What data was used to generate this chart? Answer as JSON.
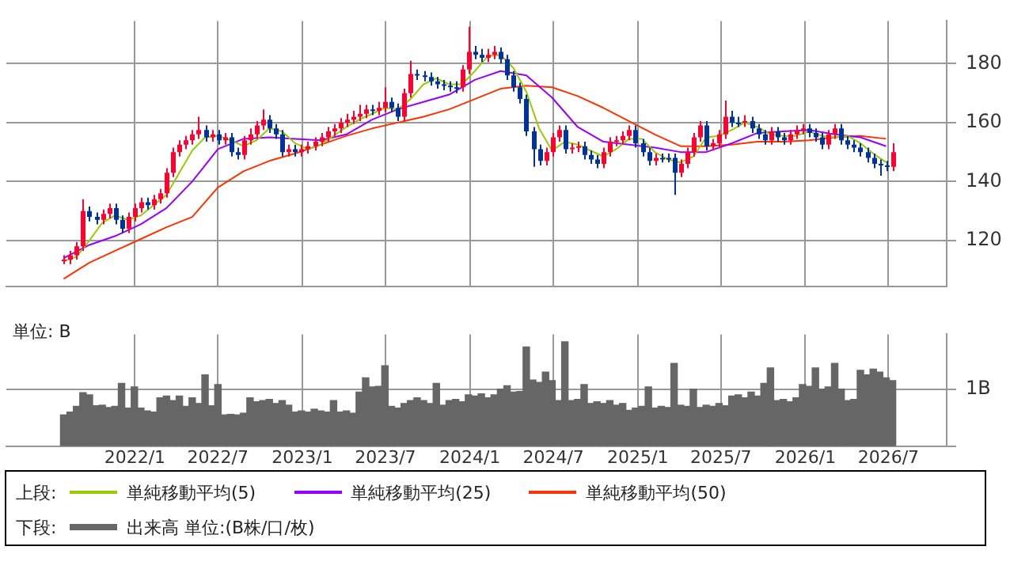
{
  "chart_data": [
    {
      "type": "candlestick",
      "legend": "bottom",
      "legend_title": "上段:",
      "grid": true,
      "tick_labels": "y",
      "xlim": [
        "2021-03-27",
        "2026-11-05"
      ],
      "xticks": [
        {
          "value": "2022-01",
          "label": null
        },
        {
          "value": "2022-07",
          "label": null
        },
        {
          "value": "2023-01",
          "label": null
        },
        {
          "value": "2023-07",
          "label": null
        },
        {
          "value": "2024-01",
          "label": null
        },
        {
          "value": "2024-07",
          "label": null
        },
        {
          "value": "2025-01",
          "label": null
        },
        {
          "value": "2025-07",
          "label": null
        },
        {
          "value": "2026-01",
          "label": null
        },
        {
          "value": "2026-07",
          "label": null
        }
      ],
      "ylim": [
        104.5,
        194.5
      ],
      "yticks": [
        120,
        140,
        160,
        180
      ],
      "x": [
        "2021-07-30",
        "2021-08-13",
        "2021-08-27",
        "2021-09-10",
        "2021-09-24",
        "2021-10-08",
        "2021-10-22",
        "2021-11-05",
        "2021-11-19",
        "2021-12-03",
        "2021-12-17",
        "2021-12-31",
        "2022-01-14",
        "2022-01-28",
        "2022-02-11",
        "2022-02-25",
        "2022-03-11",
        "2022-03-25",
        "2022-04-08",
        "2022-04-22",
        "2022-05-06",
        "2022-05-20",
        "2022-06-03",
        "2022-06-17",
        "2022-07-01",
        "2022-07-15",
        "2022-07-29",
        "2022-08-12",
        "2022-08-26",
        "2022-09-09",
        "2022-09-23",
        "2022-10-07",
        "2022-10-21",
        "2022-11-04",
        "2022-11-18",
        "2022-12-02",
        "2022-12-16",
        "2022-12-30",
        "2023-01-13",
        "2023-01-27",
        "2023-02-10",
        "2023-02-24",
        "2023-03-10",
        "2023-03-24",
        "2023-04-07",
        "2023-04-21",
        "2023-05-05",
        "2023-05-19",
        "2023-06-02",
        "2023-06-16",
        "2023-06-30",
        "2023-07-14",
        "2023-07-28",
        "2023-08-11",
        "2023-08-25",
        "2023-09-08",
        "2023-09-22",
        "2023-10-06",
        "2023-10-20",
        "2023-11-03",
        "2023-11-17",
        "2023-12-01",
        "2023-12-15",
        "2023-12-29",
        "2024-01-12",
        "2024-01-26",
        "2024-02-09",
        "2024-02-23",
        "2024-03-08",
        "2024-03-22",
        "2024-04-05",
        "2024-04-19",
        "2024-05-03",
        "2024-05-17",
        "2024-05-31",
        "2024-06-14",
        "2024-06-28",
        "2024-07-12",
        "2024-07-26",
        "2024-08-09",
        "2024-08-23",
        "2024-09-06",
        "2024-09-20",
        "2024-10-04",
        "2024-10-18",
        "2024-11-01",
        "2024-11-15",
        "2024-11-29",
        "2024-12-13",
        "2024-12-27",
        "2025-01-10",
        "2025-01-24",
        "2025-02-07",
        "2025-02-21",
        "2025-03-07",
        "2025-03-21",
        "2025-04-04",
        "2025-04-18",
        "2025-05-02",
        "2025-05-16",
        "2025-05-30",
        "2025-06-13",
        "2025-06-27",
        "2025-07-11",
        "2025-07-25",
        "2025-08-08",
        "2025-08-22",
        "2025-09-05",
        "2025-09-19",
        "2025-10-03",
        "2025-10-17",
        "2025-10-31",
        "2025-11-14",
        "2025-11-28",
        "2025-12-12",
        "2025-12-26",
        "2026-01-09",
        "2026-01-23",
        "2026-02-06",
        "2026-02-20",
        "2026-03-06",
        "2026-03-20",
        "2026-04-03",
        "2026-04-17",
        "2026-05-01",
        "2026-05-15",
        "2026-05-29",
        "2026-06-12",
        "2026-06-26",
        "2026-07-10"
      ],
      "ohlc": [
        [
          113,
          115,
          112,
          113.5
        ],
        [
          113.5,
          116.5,
          112,
          115
        ],
        [
          115,
          119.5,
          113.5,
          118
        ],
        [
          118,
          134,
          116.5,
          130
        ],
        [
          130,
          131.5,
          126.5,
          128
        ],
        [
          128,
          129.5,
          125.5,
          127
        ],
        [
          127,
          130.5,
          125.5,
          129
        ],
        [
          129,
          132.5,
          127.5,
          131
        ],
        [
          131,
          132.5,
          125.5,
          127
        ],
        [
          127,
          128.5,
          122.5,
          124
        ],
        [
          124,
          129.5,
          122.5,
          128
        ],
        [
          128,
          132.5,
          126.5,
          131
        ],
        [
          131,
          134.5,
          129.5,
          133
        ],
        [
          133,
          134.5,
          130.5,
          132
        ],
        [
          132,
          135.5,
          130.5,
          134
        ],
        [
          134,
          137.5,
          132.5,
          136
        ],
        [
          136,
          144.5,
          134.5,
          143
        ],
        [
          143,
          151.5,
          141.5,
          150
        ],
        [
          150,
          154,
          148.5,
          152.5
        ],
        [
          152.5,
          155.5,
          151,
          154
        ],
        [
          154,
          157.5,
          152.5,
          156
        ],
        [
          156,
          162,
          154.5,
          157.5
        ],
        [
          157.5,
          159,
          153.5,
          155
        ],
        [
          155,
          157.5,
          153.5,
          156
        ],
        [
          156,
          157.5,
          152.5,
          154
        ],
        [
          154,
          156.5,
          152.5,
          155
        ],
        [
          155,
          156.5,
          148.5,
          150
        ],
        [
          150,
          151.5,
          147.5,
          149
        ],
        [
          149,
          155.5,
          147.5,
          154
        ],
        [
          154,
          158,
          152.5,
          156
        ],
        [
          156,
          160.5,
          154.5,
          159
        ],
        [
          159,
          164.5,
          157.5,
          161
        ],
        [
          161,
          162.5,
          156.5,
          158
        ],
        [
          158,
          159.5,
          154.5,
          156
        ],
        [
          156,
          157.5,
          148.5,
          150
        ],
        [
          150,
          152.5,
          148.5,
          151
        ],
        [
          151,
          152.5,
          148.5,
          150
        ],
        [
          150,
          152.5,
          148.5,
          151
        ],
        [
          151,
          153.5,
          149.5,
          152
        ],
        [
          152,
          155,
          150.5,
          153.5
        ],
        [
          153.5,
          156.5,
          152,
          155
        ],
        [
          155,
          158.5,
          153.5,
          157
        ],
        [
          157,
          159.5,
          155.5,
          158
        ],
        [
          158,
          161.5,
          156.5,
          160
        ],
        [
          160,
          163,
          158.5,
          161
        ],
        [
          161,
          164,
          159.5,
          162
        ],
        [
          162,
          166,
          160.5,
          163
        ],
        [
          163,
          166,
          161.5,
          164.5
        ],
        [
          164.5,
          166,
          162.5,
          164
        ],
        [
          164,
          167,
          162.5,
          165
        ],
        [
          165,
          172,
          163.5,
          167
        ],
        [
          167,
          168.5,
          163.5,
          165
        ],
        [
          165,
          166.5,
          160.5,
          162
        ],
        [
          162,
          171.5,
          160.5,
          170
        ],
        [
          170,
          181,
          168.5,
          176.5
        ],
        [
          176.5,
          178,
          174.5,
          176
        ],
        [
          176,
          177.5,
          174,
          175.5
        ],
        [
          175.5,
          177,
          172.5,
          174
        ],
        [
          174,
          175.5,
          171.5,
          173
        ],
        [
          173,
          174.5,
          171,
          172.5
        ],
        [
          172.5,
          174,
          170.5,
          172
        ],
        [
          172,
          174,
          170,
          172
        ],
        [
          172,
          179.5,
          170.5,
          178
        ],
        [
          178,
          192.5,
          176.5,
          184
        ],
        [
          184,
          186,
          181.5,
          183
        ],
        [
          183,
          185,
          180.5,
          182
        ],
        [
          182,
          185,
          180.5,
          183
        ],
        [
          183,
          186,
          181.5,
          184
        ],
        [
          184,
          185.5,
          180,
          181.5
        ],
        [
          181.5,
          183,
          174.5,
          176
        ],
        [
          176,
          177.5,
          170.5,
          172
        ],
        [
          172,
          173.5,
          166.5,
          168
        ],
        [
          168,
          169.5,
          155.5,
          157
        ],
        [
          157,
          158.5,
          145,
          151
        ],
        [
          151,
          152.5,
          145.5,
          147
        ],
        [
          147,
          151.5,
          145.5,
          150
        ],
        [
          150,
          156.5,
          148.5,
          155
        ],
        [
          155,
          159,
          153.5,
          157.5
        ],
        [
          157.5,
          159,
          149.5,
          151
        ],
        [
          151,
          153,
          149.5,
          151.5
        ],
        [
          151.5,
          153.5,
          150,
          152
        ],
        [
          152,
          153.5,
          147.5,
          149
        ],
        [
          149,
          150.5,
          146,
          147.5
        ],
        [
          147.5,
          149,
          144.5,
          146
        ],
        [
          146,
          151.5,
          144.5,
          150
        ],
        [
          150,
          155,
          148.5,
          153.5
        ],
        [
          153.5,
          155.5,
          152,
          154
        ],
        [
          154,
          157,
          152.5,
          155.5
        ],
        [
          155.5,
          159,
          154,
          157.5
        ],
        [
          157.5,
          159,
          151.5,
          153
        ],
        [
          153,
          154.5,
          148.5,
          150
        ],
        [
          150,
          151.5,
          145.5,
          147
        ],
        [
          147,
          149.5,
          145.5,
          148
        ],
        [
          148,
          149.5,
          146.5,
          148
        ],
        [
          148,
          149.5,
          146.5,
          148
        ],
        [
          148,
          149.5,
          135.5,
          143
        ],
        [
          143,
          147.5,
          141.5,
          146
        ],
        [
          146,
          151.5,
          144.5,
          150
        ],
        [
          150,
          156.5,
          148.5,
          155
        ],
        [
          155,
          160.5,
          153.5,
          159
        ],
        [
          159,
          160.5,
          150.5,
          152
        ],
        [
          152,
          154.5,
          150.5,
          153
        ],
        [
          153,
          157.5,
          151.5,
          156
        ],
        [
          156,
          167.5,
          154.5,
          162
        ],
        [
          162,
          164,
          158.5,
          160
        ],
        [
          160,
          162,
          158.5,
          160
        ],
        [
          160,
          162.5,
          158.5,
          160.5
        ],
        [
          160.5,
          162,
          156.5,
          158
        ],
        [
          158,
          159.5,
          154.5,
          156
        ],
        [
          156,
          157.5,
          152.5,
          154
        ],
        [
          154,
          158.5,
          152.5,
          157
        ],
        [
          157,
          158.5,
          153.5,
          155
        ],
        [
          155,
          156.5,
          152.5,
          154
        ],
        [
          154,
          157.5,
          152.5,
          156
        ],
        [
          156,
          159,
          154.5,
          157.5
        ],
        [
          157.5,
          159.5,
          156,
          158
        ],
        [
          158,
          159.5,
          155,
          156.5
        ],
        [
          156.5,
          158,
          153.5,
          155
        ],
        [
          155,
          156.5,
          151,
          152.5
        ],
        [
          152.5,
          157.5,
          151,
          156
        ],
        [
          156,
          159.5,
          154.5,
          158
        ],
        [
          158,
          159.5,
          152.5,
          154
        ],
        [
          154,
          155.5,
          151,
          152.5
        ],
        [
          152.5,
          154,
          150,
          151.5
        ],
        [
          151.5,
          153,
          148.5,
          150
        ],
        [
          150,
          151.5,
          146.5,
          148
        ],
        [
          148,
          149.5,
          144.5,
          146
        ],
        [
          146,
          147.5,
          142,
          145.5
        ],
        [
          145.5,
          147,
          143.5,
          145
        ],
        [
          145,
          153,
          143.5,
          150
        ]
      ],
      "colors": [
        "#ff0033",
        "#ff0033",
        "#ff0033",
        "#ff0033",
        "#003399",
        "#003399",
        "#ff0033",
        "#ff0033",
        "#003399",
        "#003399",
        "#ff0033",
        "#ff0033",
        "#ff0033",
        "#003399",
        "#ff0033",
        "#ff0033",
        "#ff0033",
        "#ff0033",
        "#ff0033",
        "#ff0033",
        "#ff0033",
        "#ff0033",
        "#003399",
        "#ff0033",
        "#003399",
        "#ff0033",
        "#003399",
        "#003399",
        "#ff0033",
        "#ff0033",
        "#ff0033",
        "#ff0033",
        "#003399",
        "#003399",
        "#003399",
        "#ff0033",
        "#003399",
        "#ff0033",
        "#ff0033",
        "#ff0033",
        "#ff0033",
        "#ff0033",
        "#ff0033",
        "#ff0033",
        "#ff0033",
        "#ff0033",
        "#ff0033",
        "#ff0033",
        "#003399",
        "#ff0033",
        "#ff0033",
        "#003399",
        "#003399",
        "#ff0033",
        "#ff0033",
        "#003399",
        "#003399",
        "#003399",
        "#003399",
        "#003399",
        "#003399",
        "#003399",
        "#ff0033",
        "#ff0033",
        "#003399",
        "#003399",
        "#ff0033",
        "#ff0033",
        "#003399",
        "#003399",
        "#003399",
        "#003399",
        "#003399",
        "#003399",
        "#003399",
        "#ff0033",
        "#ff0033",
        "#ff0033",
        "#003399",
        "#ff0033",
        "#ff0033",
        "#003399",
        "#003399",
        "#003399",
        "#ff0033",
        "#ff0033",
        "#ff0033",
        "#ff0033",
        "#ff0033",
        "#003399",
        "#003399",
        "#003399",
        "#ff0033",
        "#003399",
        "#003399",
        "#003399",
        "#ff0033",
        "#ff0033",
        "#ff0033",
        "#ff0033",
        "#003399",
        "#ff0033",
        "#ff0033",
        "#ff0033",
        "#003399",
        "#003399",
        "#ff0033",
        "#003399",
        "#003399",
        "#003399",
        "#ff0033",
        "#003399",
        "#003399",
        "#ff0033",
        "#ff0033",
        "#ff0033",
        "#003399",
        "#003399",
        "#003399",
        "#ff0033",
        "#ff0033",
        "#003399",
        "#003399",
        "#003399",
        "#003399",
        "#003399",
        "#003399",
        "#003399",
        "#003399",
        "#ff0033"
      ],
      "series": [
        {
          "type": "line",
          "name": "単純移動平均(5)",
          "color": "#99cc00",
          "x": [
            "2021-07-30",
            "2021-08-27",
            "2021-09-24",
            "2021-10-22",
            "2021-11-19",
            "2021-12-17",
            "2022-01-14",
            "2022-02-11",
            "2022-03-11",
            "2022-04-08",
            "2022-05-06",
            "2022-06-03",
            "2022-07-01",
            "2022-07-29",
            "2022-08-26",
            "2022-09-23",
            "2022-10-21",
            "2022-11-18",
            "2022-12-16",
            "2023-01-13",
            "2023-02-10",
            "2023-03-10",
            "2023-04-07",
            "2023-05-05",
            "2023-06-02",
            "2023-06-30",
            "2023-07-28",
            "2023-08-25",
            "2023-09-22",
            "2023-10-20",
            "2023-11-17",
            "2023-12-15",
            "2024-01-12",
            "2024-02-09",
            "2024-03-08",
            "2024-04-05",
            "2024-05-03",
            "2024-05-31",
            "2024-06-28",
            "2024-07-26",
            "2024-08-23",
            "2024-09-20",
            "2024-10-18",
            "2024-11-15",
            "2024-12-13",
            "2025-01-10",
            "2025-02-07",
            "2025-03-07",
            "2025-04-04",
            "2025-05-02",
            "2025-05-30",
            "2025-06-27",
            "2025-07-25",
            "2025-08-22",
            "2025-09-19",
            "2025-10-17",
            "2025-11-14",
            "2025-12-12",
            "2026-01-09",
            "2026-02-06",
            "2026-03-06",
            "2026-04-03",
            "2026-05-01",
            "2026-05-29",
            "2026-06-26"
          ],
          "values": [
            113,
            114.5,
            120,
            126,
            128.5,
            127,
            128.5,
            132,
            135.5,
            143,
            150.5,
            155,
            155.5,
            154,
            152,
            154,
            158,
            157,
            153,
            151,
            152.5,
            155.5,
            158.5,
            161,
            163,
            165,
            164.5,
            168,
            173,
            175,
            173,
            173,
            177.5,
            182.5,
            183,
            178.5,
            170.5,
            158,
            150.5,
            153.5,
            152.5,
            150.5,
            148.5,
            151,
            154.5,
            154.5,
            150,
            147.5,
            146.5,
            148.5,
            155,
            155.5,
            157.5,
            160,
            158.5,
            156,
            155.5,
            155.5,
            157,
            155.5,
            155,
            155.5,
            153,
            149.5,
            146.5
          ]
        },
        {
          "type": "line",
          "name": "単純移動平均(25)",
          "color": "#9900ff",
          "x": [
            "2021-07-30",
            "2021-09-24",
            "2021-11-19",
            "2022-01-14",
            "2022-03-11",
            "2022-05-06",
            "2022-07-01",
            "2022-08-26",
            "2022-10-21",
            "2022-12-16",
            "2023-02-10",
            "2023-04-07",
            "2023-06-02",
            "2023-07-28",
            "2023-09-22",
            "2023-11-17",
            "2024-01-12",
            "2024-03-08",
            "2024-05-03",
            "2024-06-28",
            "2024-08-23",
            "2024-10-18",
            "2024-12-13",
            "2025-02-07",
            "2025-04-04",
            "2025-05-30",
            "2025-07-25",
            "2025-09-19",
            "2025-11-14",
            "2026-01-09",
            "2026-03-06",
            "2026-05-01",
            "2026-06-26"
          ],
          "values": [
            114,
            118.5,
            121.5,
            125.5,
            131,
            140,
            151,
            154.5,
            155,
            154.5,
            154,
            156,
            161,
            164.5,
            167,
            169.5,
            174.5,
            177.5,
            176,
            168.5,
            158.5,
            153.5,
            152.5,
            151.5,
            150,
            150,
            153,
            156.5,
            157,
            157.5,
            156,
            155,
            152
          ]
        },
        {
          "type": "line",
          "name": "単純移動平均(50)",
          "color": "#ff3300",
          "x": [
            "2021-07-30",
            "2021-09-24",
            "2021-11-19",
            "2022-01-14",
            "2022-03-11",
            "2022-05-06",
            "2022-07-01",
            "2022-08-26",
            "2022-10-21",
            "2022-12-16",
            "2023-02-10",
            "2023-04-07",
            "2023-06-02",
            "2023-07-28",
            "2023-09-22",
            "2023-11-17",
            "2024-01-12",
            "2024-03-08",
            "2024-05-03",
            "2024-06-28",
            "2024-08-23",
            "2024-10-18",
            "2024-12-13",
            "2025-02-07",
            "2025-04-04",
            "2025-05-30",
            "2025-07-25",
            "2025-09-19",
            "2025-11-14",
            "2026-01-09",
            "2026-03-06",
            "2026-05-01",
            "2026-06-26"
          ],
          "values": [
            107,
            112.5,
            116.5,
            120.5,
            124.5,
            128,
            138,
            143.5,
            147,
            149.5,
            152.5,
            155.5,
            158,
            160,
            162,
            164.5,
            168,
            171.5,
            172.5,
            172,
            169,
            165,
            160.5,
            156,
            152,
            152,
            152.5,
            153.5,
            153.5,
            154,
            155,
            155.5,
            154.5
          ]
        }
      ]
    },
    {
      "type": "bar",
      "legend": "bottom",
      "legend_title": "下段:",
      "grid": true,
      "ylabel": "単位: B",
      "xlim": [
        "2021-03-27",
        "2026-11-05"
      ],
      "xticks": [
        {
          "value": "2022-01",
          "label": "2022/1"
        },
        {
          "value": "2022-07",
          "label": "2022/7"
        },
        {
          "value": "2023-01",
          "label": "2023/1"
        },
        {
          "value": "2023-07",
          "label": "2023/7"
        },
        {
          "value": "2024-01",
          "label": "2024/1"
        },
        {
          "value": "2024-07",
          "label": "2024/7"
        },
        {
          "value": "2025-01",
          "label": "2025/1"
        },
        {
          "value": "2025-07",
          "label": "2025/7"
        },
        {
          "value": "2026-01",
          "label": "2026/1"
        },
        {
          "value": "2026-07",
          "label": "2026/7"
        }
      ],
      "ylim": [
        0,
        1.96
      ],
      "yticks": [
        {
          "value": 0,
          "label": null
        },
        {
          "value": 1,
          "label": "1B"
        }
      ],
      "x": [
        "2021-07-30",
        "2021-08-13",
        "2021-08-27",
        "2021-09-10",
        "2021-09-24",
        "2021-10-08",
        "2021-10-22",
        "2021-11-05",
        "2021-11-19",
        "2021-12-03",
        "2021-12-17",
        "2021-12-31",
        "2022-01-14",
        "2022-01-28",
        "2022-02-11",
        "2022-02-25",
        "2022-03-11",
        "2022-03-25",
        "2022-04-08",
        "2022-04-22",
        "2022-05-06",
        "2022-05-20",
        "2022-06-03",
        "2022-06-17",
        "2022-07-01",
        "2022-07-15",
        "2022-07-29",
        "2022-08-12",
        "2022-08-26",
        "2022-09-09",
        "2022-09-23",
        "2022-10-07",
        "2022-10-21",
        "2022-11-04",
        "2022-11-18",
        "2022-12-02",
        "2022-12-16",
        "2022-12-30",
        "2023-01-13",
        "2023-01-27",
        "2023-02-10",
        "2023-02-24",
        "2023-03-10",
        "2023-03-24",
        "2023-04-07",
        "2023-04-21",
        "2023-05-05",
        "2023-05-19",
        "2023-06-02",
        "2023-06-16",
        "2023-06-30",
        "2023-07-14",
        "2023-07-28",
        "2023-08-11",
        "2023-08-25",
        "2023-09-08",
        "2023-09-22",
        "2023-10-06",
        "2023-10-20",
        "2023-11-03",
        "2023-11-17",
        "2023-12-01",
        "2023-12-15",
        "2023-12-29",
        "2024-01-12",
        "2024-01-26",
        "2024-02-09",
        "2024-02-23",
        "2024-03-08",
        "2024-03-22",
        "2024-04-05",
        "2024-04-19",
        "2024-05-03",
        "2024-05-17",
        "2024-05-31",
        "2024-06-14",
        "2024-06-28",
        "2024-07-12",
        "2024-07-26",
        "2024-08-09",
        "2024-08-23",
        "2024-09-06",
        "2024-09-20",
        "2024-10-04",
        "2024-10-18",
        "2024-11-01",
        "2024-11-15",
        "2024-11-29",
        "2024-12-13",
        "2024-12-27",
        "2025-01-10",
        "2025-01-24",
        "2025-02-07",
        "2025-02-21",
        "2025-03-07",
        "2025-03-21",
        "2025-04-04",
        "2025-04-18",
        "2025-05-02",
        "2025-05-16",
        "2025-05-30",
        "2025-06-13",
        "2025-06-27",
        "2025-07-11",
        "2025-07-25",
        "2025-08-08",
        "2025-08-22",
        "2025-09-05",
        "2025-09-19",
        "2025-10-03",
        "2025-10-17",
        "2025-10-31",
        "2025-11-14",
        "2025-11-28",
        "2025-12-12",
        "2025-12-26",
        "2026-01-09",
        "2026-01-23",
        "2026-02-06",
        "2026-02-20",
        "2026-03-06",
        "2026-03-20",
        "2026-04-03",
        "2026-04-17",
        "2026-05-01",
        "2026-05-15",
        "2026-05-29",
        "2026-06-12",
        "2026-06-26",
        "2026-07-10"
      ],
      "series": [
        {
          "name": "出来高 単位:(B株/口/枚)",
          "color": "#666666",
          "values": [
            0.55,
            0.6,
            0.7,
            0.94,
            0.9,
            0.71,
            0.72,
            0.68,
            0.7,
            1.1,
            0.67,
            1.04,
            0.67,
            0.62,
            0.6,
            0.85,
            0.88,
            0.8,
            0.88,
            0.7,
            0.85,
            0.75,
            1.25,
            0.71,
            1.08,
            0.55,
            0.56,
            0.55,
            0.58,
            0.85,
            0.78,
            0.8,
            0.82,
            0.75,
            0.8,
            0.72,
            0.6,
            0.62,
            0.6,
            0.65,
            0.62,
            0.6,
            0.8,
            0.6,
            0.62,
            0.58,
            0.95,
            1.2,
            1.04,
            1.05,
            1.41,
            0.7,
            0.67,
            0.75,
            0.8,
            0.85,
            0.8,
            0.75,
            1.1,
            0.72,
            0.8,
            0.82,
            0.78,
            0.9,
            0.88,
            0.92,
            0.85,
            0.9,
            1.0,
            1.06,
            0.95,
            0.96,
            1.74,
            1.16,
            1.12,
            1.3,
            1.15,
            0.8,
            1.83,
            0.8,
            0.82,
            1.08,
            0.75,
            0.78,
            0.75,
            0.8,
            0.72,
            0.75,
            0.63,
            0.67,
            0.7,
            1.04,
            0.67,
            0.7,
            0.68,
            1.45,
            0.72,
            0.7,
            1.0,
            0.68,
            0.72,
            0.7,
            0.75,
            0.71,
            0.88,
            0.9,
            0.85,
            0.95,
            0.88,
            1.1,
            1.37,
            0.8,
            0.82,
            0.78,
            0.85,
            1.08,
            1.05,
            1.37,
            1.0,
            1.04,
            1.45,
            1.0,
            0.8,
            0.82,
            1.33,
            1.25,
            1.35,
            1.3,
            1.2,
            1.15
          ]
        }
      ]
    }
  ]
}
